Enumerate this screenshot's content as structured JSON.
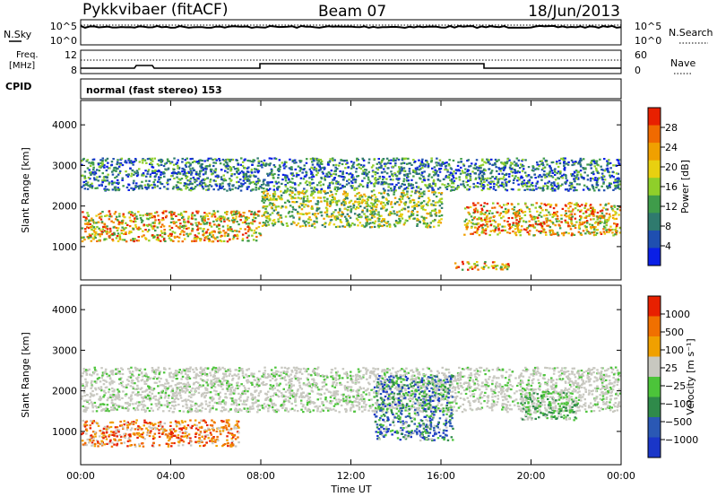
{
  "header": {
    "station": "Pykkvibaer (fitACF)",
    "beam": "Beam 07",
    "date": "18/Jun/2013"
  },
  "noise_panel": {
    "left_label": "N.Sky",
    "right_label": "N.Search",
    "left_ticks": [
      "10^5",
      "10^0"
    ],
    "right_ticks": [
      "10^5",
      "10^0"
    ]
  },
  "freq_panel": {
    "left_label_1": "Freq.",
    "left_label_2": "[MHz]",
    "right_label": "Nave",
    "left_ticks": [
      "12",
      "8"
    ],
    "right_ticks": [
      "60",
      "0"
    ]
  },
  "cpid": {
    "label": "CPID",
    "mode": "normal (fast stereo) 153"
  },
  "chart_data": [
    {
      "type": "heatmap",
      "panel": "power",
      "ylabel": "Slant Range [km]",
      "xlabel": "Time UT",
      "ylim": [
        180,
        4600
      ],
      "xlim": [
        0,
        24
      ],
      "yticks": [
        "4000",
        "3000",
        "2000",
        "1000"
      ],
      "colorbar": {
        "label": "Power [dB]",
        "ticks": [
          "28",
          "24",
          "20",
          "16",
          "12",
          "8",
          "4"
        ],
        "colors": [
          "#0a1fe6",
          "#1f4fb0",
          "#2f7a6e",
          "#3f9c4a",
          "#8fcf2a",
          "#e8d010",
          "#f0a000",
          "#f06a00",
          "#e82000"
        ]
      },
      "regions": [
        {
          "t0": 0.0,
          "t1": 8.0,
          "r0": 1150,
          "r1": 1900,
          "level": "high"
        },
        {
          "t0": 8.0,
          "t1": 16.0,
          "r0": 1500,
          "r1": 2400,
          "level": "medium"
        },
        {
          "t0": 17.0,
          "t1": 24.0,
          "r0": 1300,
          "r1": 2100,
          "level": "high"
        },
        {
          "t0": 0.0,
          "t1": 24.0,
          "r0": 2400,
          "r1": 3200,
          "level": "low"
        },
        {
          "t0": 16.5,
          "t1": 19.0,
          "r0": 450,
          "r1": 650,
          "level": "high"
        }
      ]
    },
    {
      "type": "heatmap",
      "panel": "velocity",
      "ylabel": "Slant Range [km]",
      "xlabel": "Time UT",
      "ylim": [
        180,
        4600
      ],
      "xlim": [
        0,
        24
      ],
      "yticks": [
        "4000",
        "3000",
        "2000",
        "1000"
      ],
      "xticks": [
        "00:00",
        "04:00",
        "08:00",
        "12:00",
        "16:00",
        "20:00",
        "00:00"
      ],
      "colorbar": {
        "label": "Velocity [m s⁻¹]",
        "ticks": [
          "1000",
          "500",
          "100",
          "25",
          "−25",
          "−100",
          "−500",
          "−1000"
        ],
        "colors": [
          "#1a36c8",
          "#2a58b4",
          "#2f8a4a",
          "#4cc43a",
          "#c8c8c0",
          "#f0a000",
          "#f07000",
          "#e82000"
        ]
      },
      "regions": [
        {
          "t0": 0.0,
          "t1": 24.0,
          "r0": 1500,
          "r1": 2600,
          "level": "ground"
        },
        {
          "t0": 0.0,
          "t1": 7.0,
          "r0": 650,
          "r1": 1300,
          "level": "negative"
        },
        {
          "t0": 13.0,
          "t1": 16.5,
          "r0": 800,
          "r1": 2400,
          "level": "positive"
        },
        {
          "t0": 19.5,
          "t1": 22.0,
          "r0": 1300,
          "r1": 2000,
          "level": "slight-positive"
        }
      ]
    }
  ]
}
